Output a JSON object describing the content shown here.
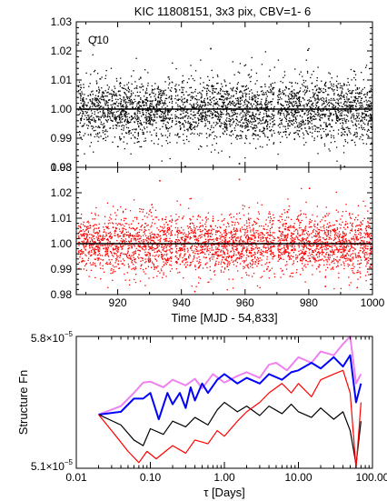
{
  "chart_data": [
    {
      "type": "scatter",
      "title": "KIC 11808151,  3x3 pix, CBV=1- 6",
      "annotation": "Q10",
      "xlim": [
        907,
        1000
      ],
      "ylim": [
        0.98,
        1.03
      ],
      "x_ticks": [
        920,
        940,
        960,
        980,
        1000
      ],
      "y_ticks": [
        "0.98",
        "0.99",
        "1.00",
        "1.01",
        "1.02",
        "1.03"
      ],
      "show_x_tick_labels": false,
      "color": "#000000",
      "reference_line": 1.0,
      "gaps": [
        [
          937.0,
          937.8
        ],
        [
          969.2,
          970.0
        ]
      ],
      "x_range": [
        907.5,
        999.8
      ],
      "scatter_sigma": 0.0055,
      "n_points": 3300,
      "outliers": [
        [
          913.0,
          1.025
        ],
        [
          941.0,
          0.9805
        ],
        [
          958.0,
          0.9815
        ],
        [
          991.0,
          0.9805
        ],
        [
          907.5,
          1.023
        ],
        [
          949.0,
          1.021
        ],
        [
          979.5,
          1.0205
        ]
      ]
    },
    {
      "type": "scatter",
      "xlabel": "Time [MJD - 54,833]",
      "xlim": [
        907,
        1000
      ],
      "ylim": [
        0.98,
        1.03
      ],
      "x_ticks": [
        920,
        940,
        960,
        980,
        1000
      ],
      "x_tick_labels": [
        "920",
        "940",
        "960",
        "980",
        "1000"
      ],
      "y_ticks": [
        "0.98",
        "0.99",
        "1.00",
        "1.01",
        "1.02",
        "1.03"
      ],
      "color": "#ff0000",
      "reference_line": 1.0,
      "gaps": [
        [
          937.0,
          937.8
        ],
        [
          969.2,
          970.0
        ]
      ],
      "x_range": [
        907.5,
        999.8
      ],
      "scatter_sigma": 0.0058,
      "n_points": 3300,
      "outliers": [
        [
          933.0,
          1.025
        ],
        [
          958.0,
          1.0255
        ],
        [
          980.0,
          1.022
        ],
        [
          944.0,
          0.9815
        ],
        [
          985.0,
          0.9835
        ],
        [
          995.0,
          0.983
        ]
      ]
    },
    {
      "type": "line",
      "xscale": "log",
      "xlim": [
        0.01,
        100
      ],
      "ylim": [
        5.1e-05,
        5.8e-05
      ],
      "xlabel": "τ [Days]",
      "ylabel": "Structure Fn",
      "x_tick_labels": [
        "0.01",
        "0.10",
        "1.00",
        "10.00",
        "100.00"
      ],
      "y_tick_labels": [
        "5.1×10",
        "5.8×10"
      ],
      "y_tick_exponent": "−5",
      "series": [
        {
          "color": "#ee82ee",
          "x": [
            0.02,
            0.04,
            0.06,
            0.08,
            0.1,
            0.15,
            0.2,
            0.3,
            0.4,
            0.5,
            0.7,
            1,
            1.5,
            2,
            3,
            4,
            5,
            7,
            10,
            15,
            20,
            30,
            40,
            50,
            60,
            70
          ],
          "y": [
            5.385e-05,
            5.43e-05,
            5.5e-05,
            5.555e-05,
            5.56e-05,
            5.53e-05,
            5.57e-05,
            5.54e-05,
            5.575e-05,
            5.525e-05,
            5.6e-05,
            5.555e-05,
            5.59e-05,
            5.61e-05,
            5.58e-05,
            5.65e-05,
            5.66e-05,
            5.62e-05,
            5.69e-05,
            5.66e-05,
            5.72e-05,
            5.7e-05,
            5.76e-05,
            5.8e-05,
            5.55e-05,
            5.6e-05
          ]
        },
        {
          "color": "#0000ff",
          "x": [
            0.02,
            0.04,
            0.06,
            0.08,
            0.1,
            0.13,
            0.17,
            0.2,
            0.25,
            0.3,
            0.35,
            0.4,
            0.5,
            0.6,
            0.8,
            1,
            1.5,
            2,
            3,
            4,
            6,
            8,
            10,
            15,
            20,
            30,
            40,
            50,
            60,
            70
          ],
          "y": [
            5.385e-05,
            5.4e-05,
            5.47e-05,
            5.47e-05,
            5.5e-05,
            5.36e-05,
            5.5e-05,
            5.44e-05,
            5.5e-05,
            5.42e-05,
            5.53e-05,
            5.46e-05,
            5.55e-05,
            5.5e-05,
            5.57e-05,
            5.6e-05,
            5.55e-05,
            5.58e-05,
            5.55e-05,
            5.6e-05,
            5.57e-05,
            5.61e-05,
            5.62e-05,
            5.66e-05,
            5.63e-05,
            5.69e-05,
            5.64e-05,
            5.7e-05,
            5.45e-05,
            5.55e-05
          ]
        },
        {
          "color": "#000000",
          "x": [
            0.02,
            0.04,
            0.06,
            0.08,
            0.1,
            0.15,
            0.2,
            0.3,
            0.4,
            0.6,
            0.8,
            1,
            1.5,
            2,
            3,
            4,
            6,
            8,
            10,
            15,
            20,
            30,
            40,
            50,
            60,
            70
          ],
          "y": [
            5.385e-05,
            5.33e-05,
            5.25e-05,
            5.22e-05,
            5.31e-05,
            5.28e-05,
            5.35e-05,
            5.32e-05,
            5.37e-05,
            5.33e-05,
            5.41e-05,
            5.45e-05,
            5.4e-05,
            5.43e-05,
            5.38e-05,
            5.43e-05,
            5.39e-05,
            5.44e-05,
            5.4e-05,
            5.37e-05,
            5.42e-05,
            5.36e-05,
            5.4e-05,
            5.3e-05,
            5.12e-05,
            5.35e-05
          ]
        },
        {
          "color": "#ff0000",
          "x": [
            0.02,
            0.03,
            0.05,
            0.07,
            0.09,
            0.12,
            0.16,
            0.2,
            0.3,
            0.4,
            0.6,
            0.8,
            1,
            1.5,
            2,
            3,
            4,
            6,
            8,
            10,
            15,
            20,
            30,
            40,
            50,
            60,
            70
          ],
          "y": [
            5.385e-05,
            5.3e-05,
            5.19e-05,
            5.13e-05,
            5.19e-05,
            5.15e-05,
            5.19e-05,
            5.22e-05,
            5.18e-05,
            5.25e-05,
            5.23e-05,
            5.3e-05,
            5.27e-05,
            5.35e-05,
            5.4e-05,
            5.45e-05,
            5.5e-05,
            5.55e-05,
            5.5e-05,
            5.55e-05,
            5.48e-05,
            5.57e-05,
            5.6e-05,
            5.62e-05,
            5.5e-05,
            5.1e-05,
            5.45e-05
          ]
        }
      ]
    }
  ]
}
